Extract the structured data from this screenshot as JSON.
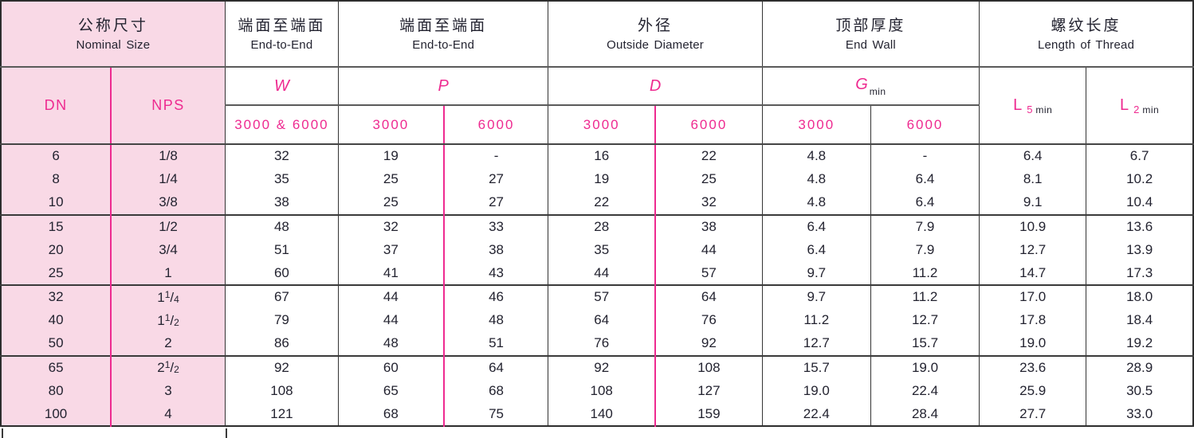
{
  "table": {
    "colors": {
      "accent": "#ee2a90",
      "pink_bg": "#f9d9e6",
      "text": "#232330",
      "grid": "#343434"
    },
    "groups": [
      {
        "zh": "公称尺寸",
        "en": "Nominal Size"
      },
      {
        "zh": "端面至端面",
        "en": "End-to-End"
      },
      {
        "zh": "端面至端面",
        "en": "End-to-End"
      },
      {
        "zh": "外径",
        "en": "Outside Diameter"
      },
      {
        "zh": "顶部厚度",
        "en": "End Wall"
      },
      {
        "zh": "螺纹长度",
        "en": "Length of Thread"
      }
    ],
    "sub": {
      "dn": "DN",
      "nps": "NPS",
      "w": "W",
      "p": "P",
      "d": "D",
      "g": "G",
      "g_sub": "min",
      "l5": {
        "letter": "L",
        "sub": "5",
        "unit": "min"
      },
      "l2": {
        "letter": "L",
        "sub": "2",
        "unit": "min"
      }
    },
    "classes": {
      "w": "3000 & 6000",
      "p3000": "3000",
      "p6000": "6000",
      "d3000": "3000",
      "d6000": "6000",
      "g3000": "3000",
      "g6000": "6000"
    },
    "rows": [
      {
        "dn": "6",
        "nps": "1/8",
        "w": "32",
        "p3000": "19",
        "p6000": "-",
        "d3000": "16",
        "d6000": "22",
        "g3000": "4.8",
        "g6000": "-",
        "l5": "6.4",
        "l2": "6.7"
      },
      {
        "dn": "8",
        "nps": "1/4",
        "w": "35",
        "p3000": "25",
        "p6000": "27",
        "d3000": "19",
        "d6000": "25",
        "g3000": "4.8",
        "g6000": "6.4",
        "l5": "8.1",
        "l2": "10.2"
      },
      {
        "dn": "10",
        "nps": "3/8",
        "w": "38",
        "p3000": "25",
        "p6000": "27",
        "d3000": "22",
        "d6000": "32",
        "g3000": "4.8",
        "g6000": "6.4",
        "l5": "9.1",
        "l2": "10.4"
      },
      {
        "dn": "15",
        "nps": "1/2",
        "w": "48",
        "p3000": "32",
        "p6000": "33",
        "d3000": "28",
        "d6000": "38",
        "g3000": "6.4",
        "g6000": "7.9",
        "l5": "10.9",
        "l2": "13.6"
      },
      {
        "dn": "20",
        "nps": "3/4",
        "w": "51",
        "p3000": "37",
        "p6000": "38",
        "d3000": "35",
        "d6000": "44",
        "g3000": "6.4",
        "g6000": "7.9",
        "l5": "12.7",
        "l2": "13.9"
      },
      {
        "dn": "25",
        "nps": "1",
        "w": "60",
        "p3000": "41",
        "p6000": "43",
        "d3000": "44",
        "d6000": "57",
        "g3000": "9.7",
        "g6000": "11.2",
        "l5": "14.7",
        "l2": "17.3"
      },
      {
        "dn": "32",
        "nps": "1 1/4",
        "w": "67",
        "p3000": "44",
        "p6000": "46",
        "d3000": "57",
        "d6000": "64",
        "g3000": "9.7",
        "g6000": "11.2",
        "l5": "17.0",
        "l2": "18.0"
      },
      {
        "dn": "40",
        "nps": "1 1/2",
        "w": "79",
        "p3000": "44",
        "p6000": "48",
        "d3000": "64",
        "d6000": "76",
        "g3000": "11.2",
        "g6000": "12.7",
        "l5": "17.8",
        "l2": "18.4"
      },
      {
        "dn": "50",
        "nps": "2",
        "w": "86",
        "p3000": "48",
        "p6000": "51",
        "d3000": "76",
        "d6000": "92",
        "g3000": "12.7",
        "g6000": "15.7",
        "l5": "19.0",
        "l2": "19.2"
      },
      {
        "dn": "65",
        "nps": "2 1/2",
        "w": "92",
        "p3000": "60",
        "p6000": "64",
        "d3000": "92",
        "d6000": "108",
        "g3000": "15.7",
        "g6000": "19.0",
        "l5": "23.6",
        "l2": "28.9"
      },
      {
        "dn": "80",
        "nps": "3",
        "w": "108",
        "p3000": "65",
        "p6000": "68",
        "d3000": "108",
        "d6000": "127",
        "g3000": "19.0",
        "g6000": "22.4",
        "l5": "25.9",
        "l2": "30.5"
      },
      {
        "dn": "100",
        "nps": "4",
        "w": "121",
        "p3000": "68",
        "p6000": "75",
        "d3000": "140",
        "d6000": "159",
        "g3000": "22.4",
        "g6000": "28.4",
        "l5": "27.7",
        "l2": "33.0"
      }
    ]
  }
}
